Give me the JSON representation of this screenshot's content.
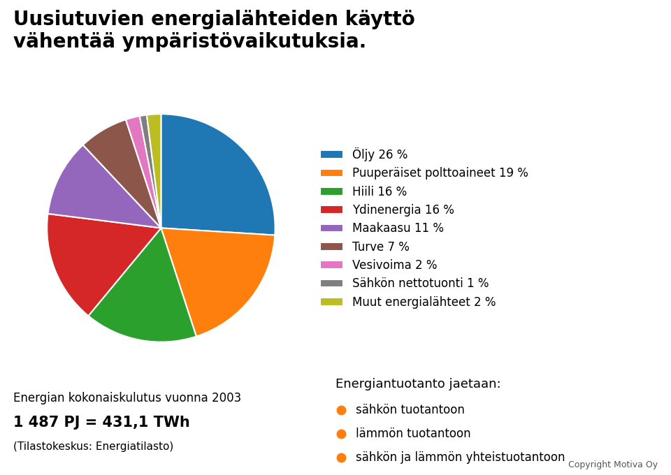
{
  "chart_data": {
    "type": "pie",
    "title": "Uusiutuvien energialähteiden käyttö\nvähentää ympäristövaikutuksia.",
    "categories": [
      "Öljy 26 %",
      "Puuperäiset polttoaineet 19 %",
      "Hiili 16 %",
      "Ydinenergia 16 %",
      "Maakaasu 11 %",
      "Turve 7 %",
      "Vesivoima 2 %",
      "Sähkön nettotuonti 1 %",
      "Muut energialähteet 2 %"
    ],
    "values": [
      26,
      19,
      16,
      16,
      11,
      7,
      2,
      1,
      2
    ],
    "legend": "right",
    "annotations": [
      "Energian kokonaiskulutus vuonna 2003",
      "1 487 PJ = 431,1 TWh",
      "(Tilastokeskus: Energiatilasto)",
      "Energiantuotanto jaetaan:",
      "sähkön tuotantoon",
      "lämmön tuotantoon",
      "sähkön ja lämmön yhteistuotantoon",
      "Copyright Motiva Oy"
    ]
  }
}
